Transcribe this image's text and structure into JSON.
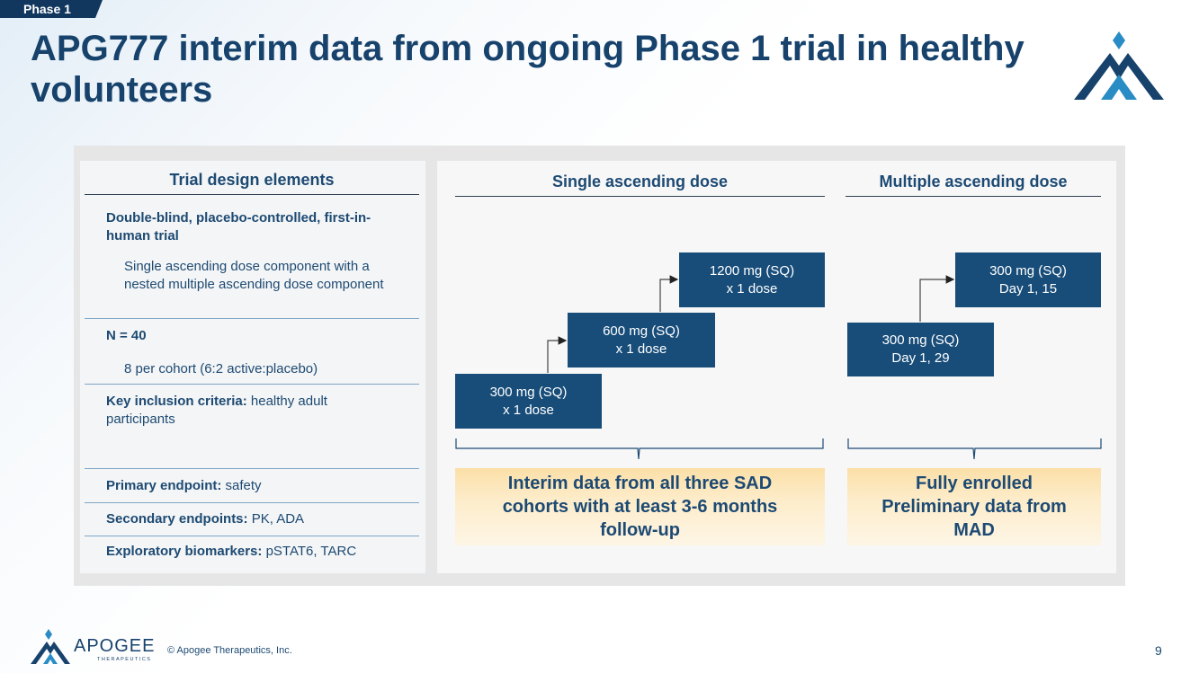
{
  "phase_tag": "Phase 1",
  "title": "APG777 interim data from ongoing Phase 1 trial in healthy volunteers",
  "colors": {
    "navy": "#17426c",
    "box": "#184d7a",
    "accent": "#2a8cc4",
    "callout": "#fbdfa8"
  },
  "left": {
    "header": "Trial design elements",
    "design_title": "Double-blind, placebo-controlled, first-in-human trial",
    "design_desc": "Single ascending dose component with a nested multiple ascending dose component",
    "n_label": "N = 40",
    "n_desc": "8 per cohort (6:2 active:placebo)",
    "inclusion_label": "Key inclusion criteria:",
    "inclusion_value": " healthy adult participants",
    "primary_label": "Primary endpoint:",
    "primary_value": " safety",
    "secondary_label": "Secondary endpoints:",
    "secondary_value": " PK, ADA",
    "exploratory_label": "Exploratory biomarkers:",
    "exploratory_value": " pSTAT6, TARC"
  },
  "sad": {
    "header": "Single ascending dose",
    "boxes": [
      {
        "line1": "300 mg (SQ)",
        "line2": "x 1 dose"
      },
      {
        "line1": "600 mg (SQ)",
        "line2": "x 1 dose"
      },
      {
        "line1": "1200 mg (SQ)",
        "line2": "x 1 dose"
      }
    ],
    "callout": "Interim data from all three SAD cohorts with at least 3-6 months follow-up"
  },
  "mad": {
    "header": "Multiple ascending dose",
    "boxes": [
      {
        "line1": "300 mg (SQ)",
        "line2": "Day 1, 29"
      },
      {
        "line1": "300 mg (SQ)",
        "line2": "Day 1, 15"
      }
    ],
    "callout_line1": "Fully enrolled",
    "callout_line2": "Preliminary data from MAD"
  },
  "footer": {
    "logo_text": "APOGEE",
    "logo_sub": "THERAPEUTICS",
    "copyright": "© Apogee Therapeutics, Inc.",
    "page": "9"
  }
}
